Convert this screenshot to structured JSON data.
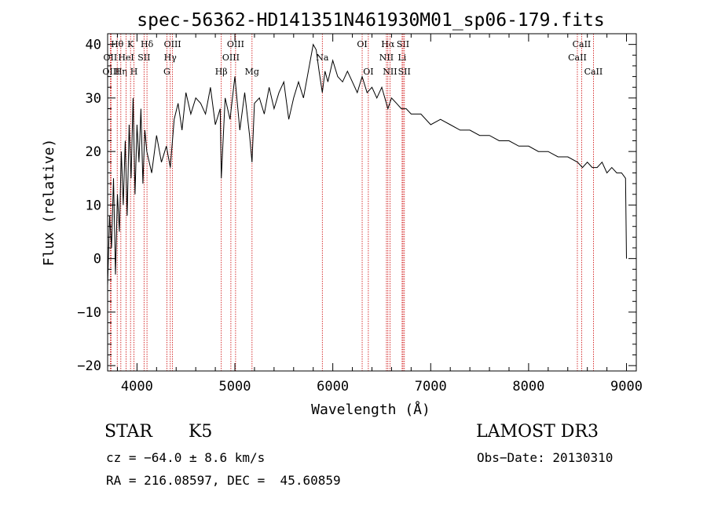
{
  "chart_data": {
    "type": "line",
    "title": "spec-56362-HD141351N461930M01_sp06-179.fits",
    "xlabel": "Wavelength (Å)",
    "ylabel": "Flux (relative)",
    "xlim": [
      3700,
      9100
    ],
    "ylim": [
      -21,
      42
    ],
    "xticks": [
      4000,
      5000,
      6000,
      7000,
      8000,
      9000
    ],
    "xtick_labels": [
      "4000",
      "5000",
      "6000",
      "7000",
      "8000",
      "9000"
    ],
    "yticks": [
      -20,
      -10,
      0,
      10,
      20,
      30,
      40
    ],
    "ytick_labels": [
      "−20",
      "−10",
      "0",
      "10",
      "20",
      "30",
      "40"
    ],
    "grid": false,
    "series": [
      {
        "name": "spectrum",
        "x": [
          3700,
          3720,
          3740,
          3760,
          3780,
          3800,
          3820,
          3840,
          3860,
          3880,
          3900,
          3920,
          3940,
          3960,
          3980,
          4000,
          4020,
          4040,
          4060,
          4080,
          4100,
          4150,
          4200,
          4250,
          4300,
          4340,
          4380,
          4420,
          4460,
          4500,
          4550,
          4600,
          4650,
          4700,
          4750,
          4800,
          4850,
          4861,
          4900,
          4950,
          5000,
          5050,
          5100,
          5150,
          5175,
          5200,
          5250,
          5300,
          5350,
          5400,
          5450,
          5500,
          5550,
          5600,
          5650,
          5700,
          5750,
          5800,
          5830,
          5860,
          5893,
          5920,
          5950,
          6000,
          6050,
          6100,
          6150,
          6200,
          6250,
          6300,
          6350,
          6400,
          6450,
          6500,
          6563,
          6600,
          6650,
          6700,
          6750,
          6800,
          6900,
          7000,
          7100,
          7200,
          7300,
          7400,
          7500,
          7600,
          7700,
          7800,
          7900,
          8000,
          8100,
          8200,
          8300,
          8400,
          8500,
          8550,
          8600,
          8650,
          8700,
          8750,
          8800,
          8850,
          8900,
          8950,
          8990,
          9000
        ],
        "values": [
          -5,
          8,
          2,
          15,
          -3,
          12,
          5,
          20,
          10,
          22,
          8,
          25,
          15,
          30,
          12,
          25,
          18,
          28,
          14,
          24,
          20,
          16,
          23,
          18,
          21,
          17,
          26,
          29,
          24,
          31,
          27,
          30,
          29,
          27,
          32,
          25,
          28,
          15,
          30,
          26,
          34,
          24,
          31,
          23,
          18,
          29,
          30,
          27,
          32,
          28,
          31,
          33,
          26,
          30,
          33,
          30,
          35,
          40,
          39,
          35,
          31,
          35,
          33,
          37,
          34,
          33,
          35,
          33,
          31,
          34,
          31,
          32,
          30,
          32,
          28,
          30,
          29,
          28,
          28,
          27,
          27,
          25,
          26,
          25,
          24,
          24,
          23,
          23,
          22,
          22,
          21,
          21,
          20,
          20,
          19,
          19,
          18,
          17,
          18,
          17,
          17,
          18,
          16,
          17,
          16,
          16,
          15,
          0
        ]
      }
    ],
    "lines": [
      {
        "name": "Hθ",
        "wavelength": 3798,
        "row": 1
      },
      {
        "name": "OII",
        "wavelength": 3727,
        "row": 2
      },
      {
        "name": "OIII",
        "wavelength": 3735,
        "row": 3
      },
      {
        "name": "Hη",
        "wavelength": 3835,
        "row": 3
      },
      {
        "name": "HeI",
        "wavelength": 3889,
        "row": 2
      },
      {
        "name": "K",
        "wavelength": 3934,
        "row": 1
      },
      {
        "name": "H",
        "wavelength": 3969,
        "row": 3
      },
      {
        "name": "SII",
        "wavelength": 4072,
        "row": 2
      },
      {
        "name": "Hδ",
        "wavelength": 4102,
        "row": 1
      },
      {
        "name": "OIII",
        "wavelength": 4363,
        "row": 1
      },
      {
        "name": "Hγ",
        "wavelength": 4340,
        "row": 2
      },
      {
        "name": "G",
        "wavelength": 4305,
        "row": 3
      },
      {
        "name": "Hβ",
        "wavelength": 4861,
        "row": 3
      },
      {
        "name": "OIII",
        "wavelength": 4959,
        "row": 2
      },
      {
        "name": "OIII",
        "wavelength": 5007,
        "row": 1
      },
      {
        "name": "Mg",
        "wavelength": 5175,
        "row": 3
      },
      {
        "name": "Na",
        "wavelength": 5893,
        "row": 2
      },
      {
        "name": "OI",
        "wavelength": 6300,
        "row": 1
      },
      {
        "name": "OI",
        "wavelength": 6363,
        "row": 3
      },
      {
        "name": "Hα",
        "wavelength": 6563,
        "row": 1
      },
      {
        "name": "NII",
        "wavelength": 6548,
        "row": 2
      },
      {
        "name": "NII",
        "wavelength": 6584,
        "row": 3
      },
      {
        "name": "SII",
        "wavelength": 6717,
        "row": 1
      },
      {
        "name": "Li",
        "wavelength": 6708,
        "row": 2
      },
      {
        "name": "SII",
        "wavelength": 6731,
        "row": 3
      },
      {
        "name": "CaII",
        "wavelength": 8542,
        "row": 1
      },
      {
        "name": "CaII",
        "wavelength": 8498,
        "row": 2
      },
      {
        "name": "CaII",
        "wavelength": 8662,
        "row": 3
      }
    ]
  },
  "info": {
    "class_label": "STAR",
    "subclass": "K5",
    "survey": "LAMOST DR3",
    "cz": "cz = −64.0 ± 8.6 km/s",
    "obs_date": "Obs−Date: 20130310",
    "coords": "RA = 216.08597, DEC =  45.60859"
  },
  "colors": {
    "spectrum": "#000000",
    "line_marker": "#cc0000",
    "axes": "#000000"
  }
}
